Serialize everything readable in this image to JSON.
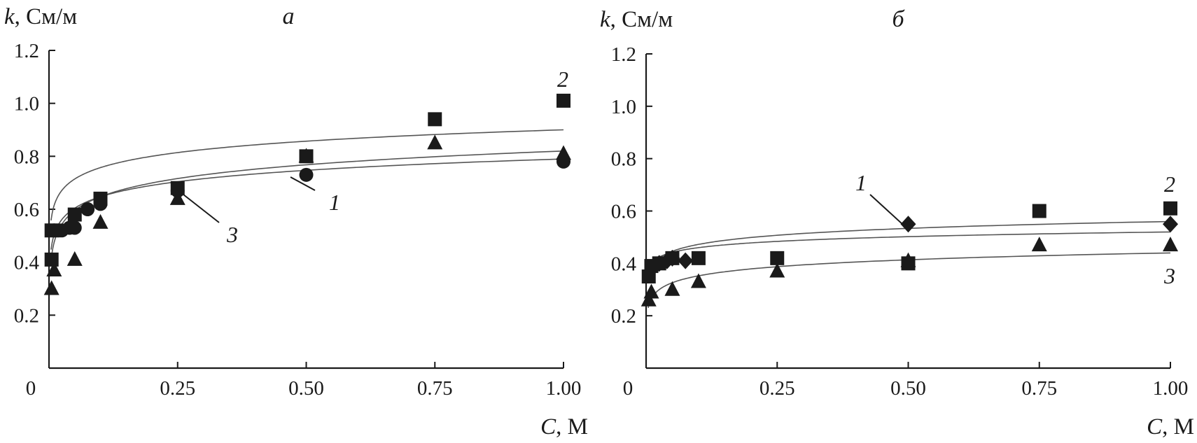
{
  "colors": {
    "ink": "#1a1a1a",
    "curve": "#555555",
    "background": "#ffffff"
  },
  "chart_data": [
    {
      "type": "scatter",
      "panel_label": "а",
      "y_title": {
        "var": "k",
        "unit": ", См/м"
      },
      "x_title": {
        "var": "C",
        "unit": ", М"
      },
      "xlim": [
        0,
        1.0
      ],
      "ylim": [
        0,
        1.2
      ],
      "x_ticks": [
        0,
        0.25,
        0.5,
        0.75,
        1.0
      ],
      "x_tick_labels": [
        "0",
        "0.25",
        "0.50",
        "0.75",
        "1.00"
      ],
      "y_ticks": [
        0.2,
        0.4,
        0.6,
        0.8,
        1.0,
        1.2
      ],
      "y_tick_labels": [
        "0.2",
        "0.4",
        "0.6",
        "0.8",
        "1.0",
        "1.2"
      ],
      "grid": false,
      "series": [
        {
          "name": "1",
          "marker": "circle",
          "x": [
            0.01,
            0.02,
            0.025,
            0.04,
            0.05,
            0.075,
            0.1,
            0.25,
            0.5,
            1.0
          ],
          "y": [
            0.52,
            0.52,
            0.52,
            0.53,
            0.53,
            0.6,
            0.62,
            0.67,
            0.73,
            0.78
          ],
          "fit": {
            "a": 0.79,
            "b": 0.062
          }
        },
        {
          "name": "2",
          "marker": "square",
          "x": [
            0.005,
            0.005,
            0.05,
            0.1,
            0.25,
            0.5,
            0.75,
            1.0
          ],
          "y": [
            0.41,
            0.52,
            0.58,
            0.64,
            0.68,
            0.8,
            0.94,
            1.01
          ],
          "fit": {
            "a": 0.9,
            "b": 0.062
          }
        },
        {
          "name": "3",
          "marker": "triangle",
          "x": [
            0.005,
            0.01,
            0.05,
            0.1,
            0.25,
            0.5,
            0.75,
            1.0
          ],
          "y": [
            0.3,
            0.37,
            0.41,
            0.55,
            0.64,
            0.8,
            0.85,
            0.81
          ],
          "fit": {
            "a": 0.82,
            "b": 0.075
          }
        }
      ],
      "annotations": [
        {
          "text": "1",
          "series": "1"
        },
        {
          "text": "2",
          "series": "2"
        },
        {
          "text": "3",
          "series": "3"
        }
      ]
    },
    {
      "type": "scatter",
      "panel_label": "б",
      "y_title": {
        "var": "k",
        "unit": ", См/м"
      },
      "x_title": {
        "var": "C",
        "unit": ", М"
      },
      "xlim": [
        0,
        1.0
      ],
      "ylim": [
        0,
        1.2
      ],
      "x_ticks": [
        0,
        0.25,
        0.5,
        0.75,
        1.0
      ],
      "x_tick_labels": [
        "0",
        "0.25",
        "0.50",
        "0.75",
        "1.00"
      ],
      "y_ticks": [
        0.2,
        0.4,
        0.6,
        0.8,
        1.0,
        1.2
      ],
      "y_tick_labels": [
        "0.2",
        "0.4",
        "0.6",
        "0.8",
        "1.0",
        "1.2"
      ],
      "grid": false,
      "series": [
        {
          "name": "1",
          "marker": "diamond",
          "x": [
            0.025,
            0.04,
            0.05,
            0.075,
            0.5,
            1.0
          ],
          "y": [
            0.4,
            0.41,
            0.42,
            0.41,
            0.55,
            0.55
          ],
          "fit": {
            "a": 0.56,
            "b": 0.038
          }
        },
        {
          "name": "2",
          "marker": "square",
          "x": [
            0.005,
            0.01,
            0.025,
            0.05,
            0.1,
            0.25,
            0.5,
            0.75,
            1.0
          ],
          "y": [
            0.35,
            0.39,
            0.4,
            0.42,
            0.42,
            0.42,
            0.4,
            0.6,
            0.61
          ],
          "fit": {
            "a": 0.52,
            "b": 0.026
          }
        },
        {
          "name": "3",
          "marker": "triangle",
          "x": [
            0.005,
            0.01,
            0.05,
            0.1,
            0.25,
            0.5,
            0.75,
            1.0
          ],
          "y": [
            0.26,
            0.29,
            0.3,
            0.33,
            0.37,
            0.41,
            0.47,
            0.47
          ],
          "fit": {
            "a": 0.44,
            "b": 0.038
          }
        }
      ],
      "annotations": [
        {
          "text": "1",
          "series": "1"
        },
        {
          "text": "2",
          "series": "2"
        },
        {
          "text": "3",
          "series": "3"
        }
      ]
    }
  ]
}
